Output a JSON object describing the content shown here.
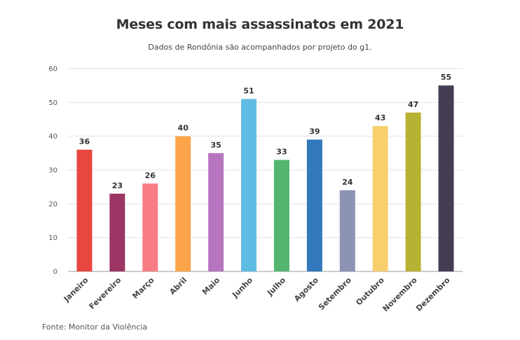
{
  "chart_data": {
    "type": "bar",
    "title": "Meses com mais assassinatos em 2021",
    "subtitle": "Dados de Rondônia são acompanhados por projeto do g1.",
    "source": "Fonte: Monitor da Violência",
    "xlabel": "",
    "ylabel": "",
    "ylim": [
      0,
      60
    ],
    "yticks": [
      0,
      10,
      20,
      30,
      40,
      50,
      60
    ],
    "grid": true,
    "categories": [
      "Janeiro",
      "Fevereiro",
      "Março",
      "Abril",
      "Maio",
      "Junho",
      "Julho",
      "Agosto",
      "Setembro",
      "Outubro",
      "Novembro",
      "Dezembro"
    ],
    "values": [
      36,
      23,
      26,
      40,
      35,
      51,
      33,
      39,
      24,
      43,
      47,
      55
    ],
    "colors": [
      "#e8473f",
      "#9b3563",
      "#f87c84",
      "#fba44a",
      "#b775c0",
      "#5fbde3",
      "#54b56f",
      "#3278bc",
      "#8c93b3",
      "#f7cf6d",
      "#b7b233",
      "#463d55"
    ]
  }
}
